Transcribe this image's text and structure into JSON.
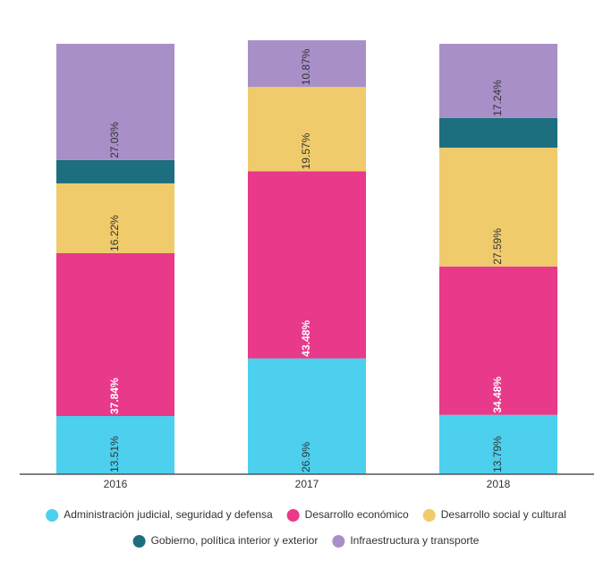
{
  "chart_data": {
    "type": "stacked-bar",
    "categories": [
      "2016",
      "2017",
      "2018"
    ],
    "series": [
      {
        "name": "Administración judicial, seguridad y defensa",
        "color": "#4dcfee",
        "values": [
          13.51,
          26.9,
          13.79
        ],
        "value_labels": [
          "13.51%",
          "26.9%",
          "13.79%"
        ]
      },
      {
        "name": "Desarrollo económico",
        "color": "#e8398a",
        "values": [
          37.84,
          43.48,
          34.48
        ],
        "value_labels": [
          "37.84%",
          "43.48%",
          "34.48%"
        ]
      },
      {
        "name": "Desarrollo social y cultural",
        "color": "#f0cb6c",
        "values": [
          16.22,
          19.57,
          27.59
        ],
        "value_labels": [
          "16.22%",
          "19.57%",
          "27.59%"
        ]
      },
      {
        "name": "Gobierno, política interior y exterior",
        "color": "#1d6e7f",
        "values": [
          5.41,
          0,
          6.9
        ],
        "value_labels": [
          null,
          null,
          null
        ]
      },
      {
        "name": "Infraestructura y transporte",
        "color": "#a98fc8",
        "values": [
          27.03,
          10.87,
          17.24
        ],
        "value_labels": [
          "27.03%",
          "10.87%",
          "17.24%"
        ]
      }
    ],
    "label_colors": [
      "#333333",
      "#ffffff",
      "#333333",
      "#ffffff",
      "#333333"
    ]
  }
}
